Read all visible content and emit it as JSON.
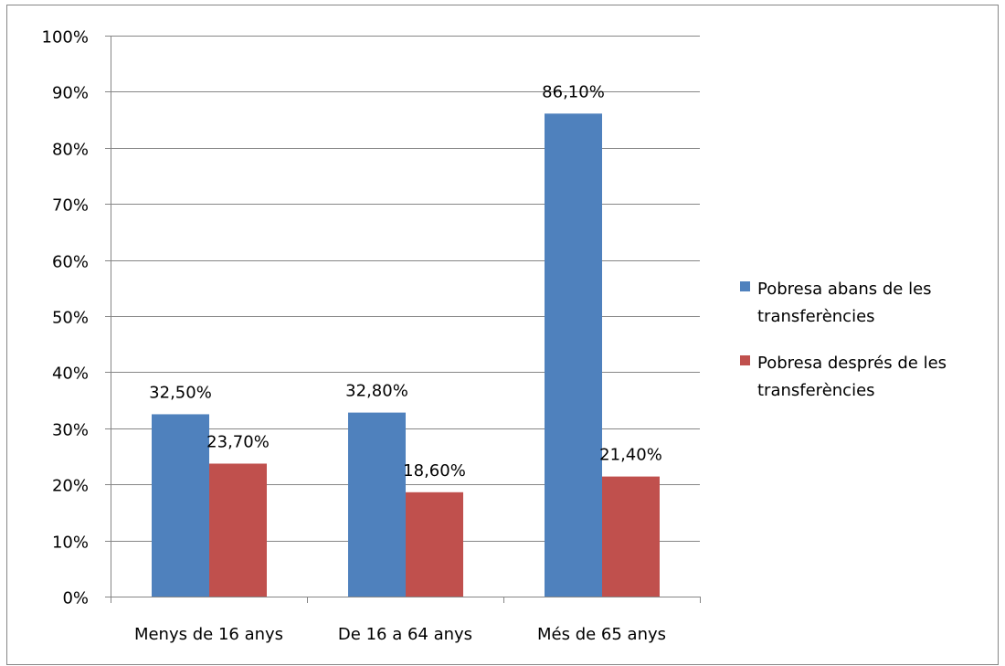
{
  "chart_data": {
    "type": "bar",
    "categories": [
      "Menys de 16 anys",
      "De 16 a 64 anys",
      "Més de 65 anys"
    ],
    "series": [
      {
        "name": "Pobresa abans de les transferències",
        "name_lines": [
          "Pobresa abans de les",
          "transferències"
        ],
        "color": "#4F81BD",
        "values": [
          32.5,
          32.8,
          86.1
        ],
        "labels": [
          "32,50%",
          "32,80%",
          "86,10%"
        ]
      },
      {
        "name": "Pobresa després de les transferències",
        "name_lines": [
          "Pobresa després de les",
          "transferències"
        ],
        "color": "#C0504D",
        "values": [
          23.7,
          18.6,
          21.4
        ],
        "labels": [
          "23,70%",
          "18,60%",
          "21,40%"
        ]
      }
    ],
    "ylim": [
      0,
      100
    ],
    "yticks": [
      0,
      10,
      20,
      30,
      40,
      50,
      60,
      70,
      80,
      90,
      100
    ],
    "ytick_labels": [
      "0%",
      "10%",
      "20%",
      "30%",
      "40%",
      "50%",
      "60%",
      "70%",
      "80%",
      "90%",
      "100%"
    ],
    "grid": true,
    "legend_position": "right",
    "title": "",
    "xlabel": "",
    "ylabel": ""
  }
}
